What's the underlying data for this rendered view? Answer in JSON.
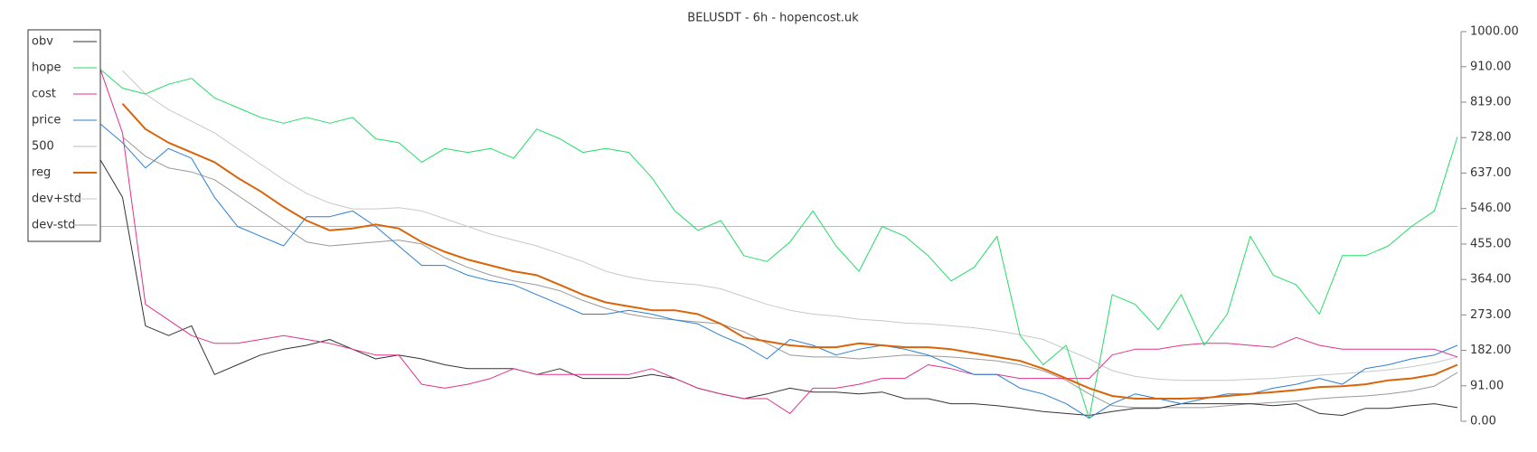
{
  "chart_data": {
    "type": "line",
    "title": "BELUSDT - 6h - hopencost.uk",
    "ylim": [
      0,
      1000
    ],
    "yticks": [
      {
        "value": 0,
        "label": "0.00"
      },
      {
        "value": 91,
        "label": "91.00"
      },
      {
        "value": 182,
        "label": "182.00"
      },
      {
        "value": 273,
        "label": "273.00"
      },
      {
        "value": 364,
        "label": "364.00"
      },
      {
        "value": 455,
        "label": "455.00"
      },
      {
        "value": 546,
        "label": "546.00"
      },
      {
        "value": 637,
        "label": "637.00"
      },
      {
        "value": 728,
        "label": "728.00"
      },
      {
        "value": 819,
        "label": "819.00"
      },
      {
        "value": 910,
        "label": "910.00"
      },
      {
        "value": 1000,
        "label": "1000.00"
      }
    ],
    "legend": "upper left",
    "series": [
      {
        "name": "obv",
        "color": "#333333",
        "width": 1,
        "values": [
          675,
          575,
          245,
          220,
          245,
          120,
          145,
          170,
          185,
          195,
          210,
          185,
          160,
          170,
          160,
          145,
          135,
          135,
          135,
          120,
          135,
          110,
          110,
          110,
          120,
          110,
          85,
          70,
          58,
          70,
          85,
          75,
          75,
          70,
          75,
          58,
          58,
          45,
          45,
          40,
          33,
          25,
          20,
          15,
          25,
          33,
          33,
          45,
          45,
          45,
          45,
          40,
          45,
          20,
          15,
          33,
          33,
          40,
          45,
          35
        ]
      },
      {
        "name": "hope",
        "color": "#22dd66",
        "width": 1,
        "values": [
          905,
          855,
          840,
          865,
          880,
          830,
          805,
          780,
          765,
          780,
          765,
          780,
          725,
          715,
          665,
          700,
          690,
          700,
          675,
          750,
          725,
          690,
          700,
          690,
          625,
          540,
          490,
          515,
          425,
          410,
          460,
          540,
          450,
          385,
          500,
          475,
          425,
          360,
          395,
          475,
          220,
          145,
          195,
          8,
          325,
          300,
          235,
          325,
          195,
          275,
          475,
          375,
          350,
          275,
          425,
          425,
          450,
          500,
          540,
          730
        ]
      },
      {
        "name": "cost",
        "color": "#e0338a",
        "width": 1,
        "values": [
          910,
          740,
          300,
          260,
          220,
          200,
          200,
          210,
          220,
          210,
          200,
          185,
          170,
          170,
          95,
          85,
          95,
          110,
          135,
          120,
          120,
          120,
          120,
          120,
          135,
          110,
          85,
          70,
          58,
          58,
          20,
          85,
          85,
          95,
          110,
          110,
          145,
          135,
          120,
          120,
          110,
          110,
          110,
          110,
          170,
          185,
          185,
          195,
          200,
          200,
          195,
          190,
          215,
          195,
          185,
          185,
          185,
          185,
          185,
          165
        ]
      },
      {
        "name": "price",
        "color": "#2a7fd4",
        "width": 1,
        "values": [
          765,
          715,
          650,
          700,
          675,
          575,
          500,
          475,
          450,
          525,
          525,
          540,
          500,
          450,
          400,
          400,
          375,
          360,
          350,
          325,
          300,
          275,
          275,
          285,
          275,
          260,
          250,
          220,
          195,
          160,
          210,
          195,
          170,
          185,
          195,
          185,
          170,
          145,
          120,
          120,
          85,
          70,
          45,
          8,
          45,
          70,
          58,
          45,
          58,
          70,
          70,
          85,
          95,
          110,
          95,
          135,
          145,
          160,
          170,
          195
        ]
      },
      {
        "name": "500",
        "color": "#bbbbbb",
        "width": 1,
        "values": [
          500,
          500,
          500,
          500,
          500,
          500,
          500,
          500,
          500,
          500,
          500,
          500,
          500,
          500,
          500,
          500,
          500,
          500,
          500,
          500,
          500,
          500,
          500,
          500,
          500,
          500,
          500,
          500,
          500,
          500,
          500,
          500,
          500,
          500,
          500,
          500,
          500,
          500,
          500,
          500,
          500,
          500,
          500,
          500,
          500,
          500,
          500,
          500,
          500,
          500,
          500,
          500,
          500,
          500,
          500,
          500,
          500,
          500,
          500,
          500
        ]
      },
      {
        "name": "reg",
        "color": "#d9640a",
        "width": 2,
        "values": [
          null,
          815,
          750,
          715,
          690,
          665,
          625,
          590,
          550,
          515,
          490,
          495,
          505,
          495,
          460,
          435,
          415,
          400,
          385,
          375,
          350,
          325,
          305,
          295,
          285,
          285,
          275,
          250,
          215,
          205,
          195,
          190,
          190,
          200,
          195,
          190,
          190,
          185,
          175,
          165,
          155,
          135,
          110,
          85,
          65,
          58,
          58,
          58,
          60,
          65,
          70,
          75,
          80,
          88,
          90,
          95,
          105,
          110,
          120,
          145
        ]
      },
      {
        "name": "dev+std",
        "color": "#c8c8c8",
        "width": 1,
        "values": [
          null,
          900,
          840,
          800,
          770,
          740,
          700,
          660,
          620,
          585,
          560,
          545,
          545,
          548,
          540,
          520,
          500,
          480,
          465,
          450,
          430,
          410,
          385,
          370,
          360,
          355,
          350,
          340,
          320,
          300,
          285,
          275,
          270,
          262,
          258,
          252,
          250,
          245,
          240,
          232,
          222,
          210,
          185,
          160,
          130,
          115,
          108,
          105,
          105,
          105,
          108,
          110,
          115,
          118,
          122,
          127,
          132,
          140,
          150,
          165
        ]
      },
      {
        "name": "dev-std",
        "color": "#999999",
        "width": 1,
        "values": [
          null,
          730,
          680,
          650,
          640,
          620,
          580,
          540,
          500,
          460,
          450,
          455,
          460,
          465,
          455,
          420,
          395,
          375,
          360,
          350,
          335,
          310,
          290,
          275,
          265,
          260,
          255,
          250,
          230,
          200,
          170,
          165,
          165,
          160,
          165,
          170,
          168,
          165,
          160,
          155,
          145,
          130,
          105,
          70,
          40,
          35,
          35,
          35,
          35,
          40,
          45,
          48,
          52,
          58,
          62,
          65,
          70,
          78,
          90,
          125
        ]
      }
    ]
  }
}
